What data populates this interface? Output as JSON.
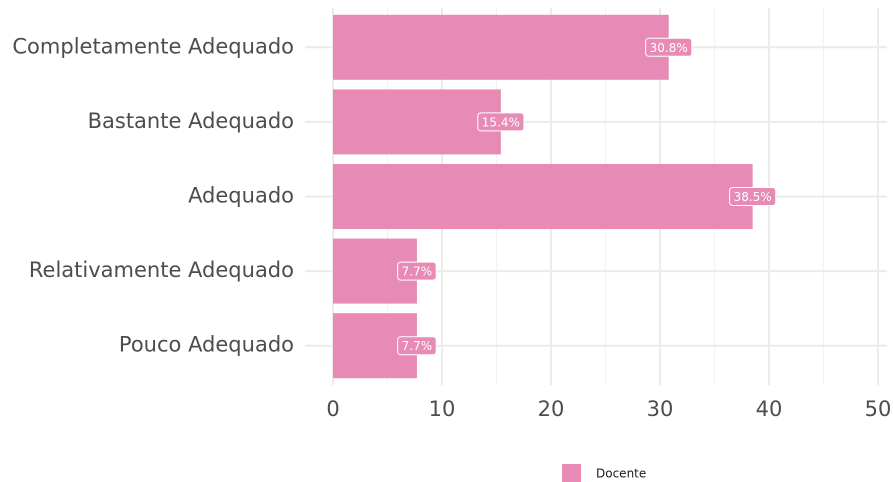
{
  "chart_data": {
    "type": "bar",
    "orientation": "horizontal",
    "categories": [
      "Completamente Adequado",
      "Bastante Adequado",
      "Adequado",
      "Relativamente Adequado",
      "Pouco Adequado"
    ],
    "series": [
      {
        "name": "Docente",
        "color": "#e78ab5",
        "values": [
          30.8,
          15.4,
          38.5,
          7.7,
          7.7
        ],
        "value_labels": [
          "30.8%",
          "15.4%",
          "38.5%",
          "7.7%",
          "7.7%"
        ]
      }
    ],
    "xlim": [
      0,
      50
    ],
    "xticks": [
      0,
      10,
      20,
      30,
      40,
      50
    ],
    "x_minor_ticks": [
      5,
      15,
      25,
      35,
      45
    ],
    "grid": true,
    "legend": "bottom"
  }
}
